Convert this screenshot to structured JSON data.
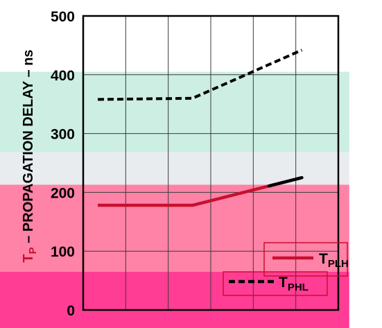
{
  "chart_data": {
    "type": "line",
    "ylabel": {
      "prefix": "T",
      "subscript": "P",
      "rest": " – PROPAGATION DELAY – ns",
      "prefix_color": "#c8102e",
      "rest_color": "#000000"
    },
    "ylim": [
      0,
      500
    ],
    "yticks": [
      "0",
      "100",
      "200",
      "300",
      "400",
      "500"
    ],
    "xlim": [
      0,
      7
    ],
    "grid": true,
    "legend_placement": "bottom-right",
    "series": [
      {
        "name": "TPLH",
        "label_main": "T",
        "label_sub": "PLH",
        "style": "solid",
        "color": "#c8102e",
        "x": [
          0.4,
          3,
          6
        ],
        "y": [
          178,
          178,
          225
        ],
        "tail_color": "#000000",
        "tail_from_x": 5.1
      },
      {
        "name": "TPHL",
        "label_main": "T",
        "label_sub": "PHL",
        "style": "dashed",
        "color": "#000000",
        "x": [
          0.4,
          3,
          6
        ],
        "y": [
          358,
          360,
          442
        ]
      }
    ]
  },
  "bands": [
    {
      "name": "green",
      "from": 268,
      "to": 405,
      "color": "#cdeee3"
    },
    {
      "name": "gray",
      "from": 213,
      "to": 268,
      "color": "#e9ecef"
    },
    {
      "name": "pink",
      "from": 65,
      "to": 213,
      "color": "#ff82a7"
    },
    {
      "name": "magenta",
      "from": -40,
      "to": 65,
      "color": "#ff3d94"
    }
  ],
  "bands_extent_x": [
    -2.4,
    7.3
  ]
}
